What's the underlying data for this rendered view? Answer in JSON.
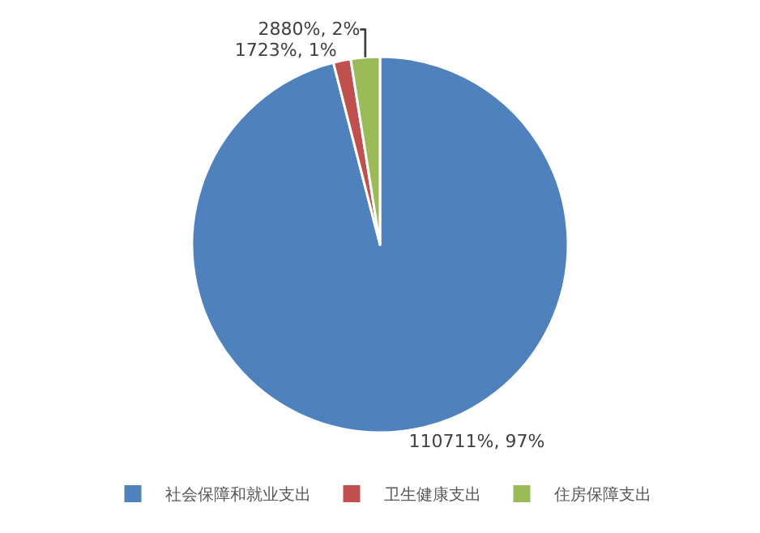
{
  "chart_data": {
    "type": "pie",
    "categories": [
      "社会保障和就业支出",
      "卫生健康支出",
      "住房保障支出"
    ],
    "values": [
      110711,
      1723,
      2880
    ],
    "value_labels": [
      "110711%, 97%",
      "1723%, 1%",
      "2880%, 2%"
    ],
    "colors": [
      "#4f81bd",
      "#c0504d",
      "#9bbb59"
    ],
    "legend": "bottom"
  }
}
